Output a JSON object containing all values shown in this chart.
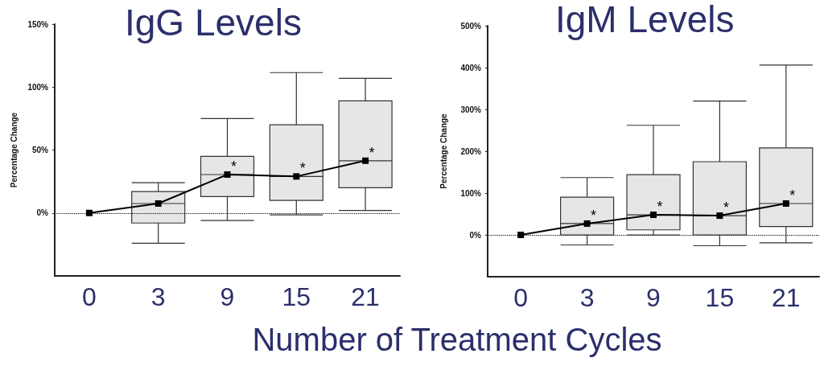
{
  "chart_data": [
    {
      "type": "box",
      "title": "IgG Levels",
      "ylabel": "Percentage Change",
      "xlabel": "Number of Treatment Cycles",
      "categories": [
        "0",
        "3",
        "9",
        "15",
        "21"
      ],
      "ylim": [
        -50,
        150
      ],
      "yticks": [
        {
          "value": 0,
          "label": "0%"
        },
        {
          "value": 50,
          "label": "50%"
        },
        {
          "value": 100,
          "label": "100%"
        },
        {
          "value": 150,
          "label": "150%"
        }
      ],
      "grid": false,
      "series": [
        {
          "type": "box",
          "color": "#e6e6e6",
          "boxes": [
            null,
            {
              "low": -24,
              "q1": -8,
              "median": 7.5,
              "q3": 17,
              "high": 24
            },
            {
              "low": -6,
              "q1": 13,
              "median": 30.5,
              "q3": 45,
              "high": 75
            },
            {
              "low": -1.5,
              "q1": 10,
              "median": 29,
              "q3": 70,
              "high": 111.5
            },
            {
              "low": 2,
              "q1": 20,
              "median": 41.5,
              "q3": 89,
              "high": 107
            }
          ]
        },
        {
          "type": "line",
          "color": "#000000",
          "marker": "square",
          "values": [
            0,
            7.5,
            30.5,
            29,
            41.5
          ]
        }
      ],
      "ref_lines": [
        {
          "axis": "y",
          "value": 0,
          "line_style": "dotted",
          "color": "#000000"
        }
      ],
      "annotations": [
        {
          "text": "*",
          "x": "9",
          "y": 30.5
        },
        {
          "text": "*",
          "x": "15",
          "y": 29
        },
        {
          "text": "*",
          "x": "21",
          "y": 41.5
        }
      ]
    },
    {
      "type": "box",
      "title": "IgM Levels",
      "ylabel": "Percentage Change",
      "categories": [
        "0",
        "3",
        "9",
        "15",
        "21"
      ],
      "ylim": [
        -100,
        500
      ],
      "yticks": [
        {
          "value": 0,
          "label": "0%"
        },
        {
          "value": 100,
          "label": "100%"
        },
        {
          "value": 200,
          "label": "200%"
        },
        {
          "value": 300,
          "label": "300%"
        },
        {
          "value": 400,
          "label": "400%"
        },
        {
          "value": 500,
          "label": "500%"
        }
      ],
      "grid": false,
      "series": [
        {
          "type": "box",
          "color": "#e6e6e6",
          "boxes": [
            null,
            {
              "low": -24,
              "q1": 0,
              "median": 27,
              "q3": 90,
              "high": 137
            },
            {
              "low": 0,
              "q1": 12,
              "median": 48,
              "q3": 144,
              "high": 262
            },
            {
              "low": -26,
              "q1": 0,
              "median": 46,
              "q3": 175,
              "high": 320
            },
            {
              "low": -19,
              "q1": 20,
              "median": 75,
              "q3": 208,
              "high": 406
            }
          ]
        },
        {
          "type": "line",
          "color": "#000000",
          "marker": "square",
          "values": [
            0,
            27,
            48,
            46,
            75
          ]
        }
      ],
      "ref_lines": [
        {
          "axis": "y",
          "value": 0,
          "line_style": "dotted",
          "color": "#000000"
        }
      ],
      "annotations": [
        {
          "text": "*",
          "x": "3",
          "y": 27
        },
        {
          "text": "*",
          "x": "9",
          "y": 48
        },
        {
          "text": "*",
          "x": "15",
          "y": 46
        },
        {
          "text": "*",
          "x": "21",
          "y": 75
        }
      ]
    }
  ]
}
